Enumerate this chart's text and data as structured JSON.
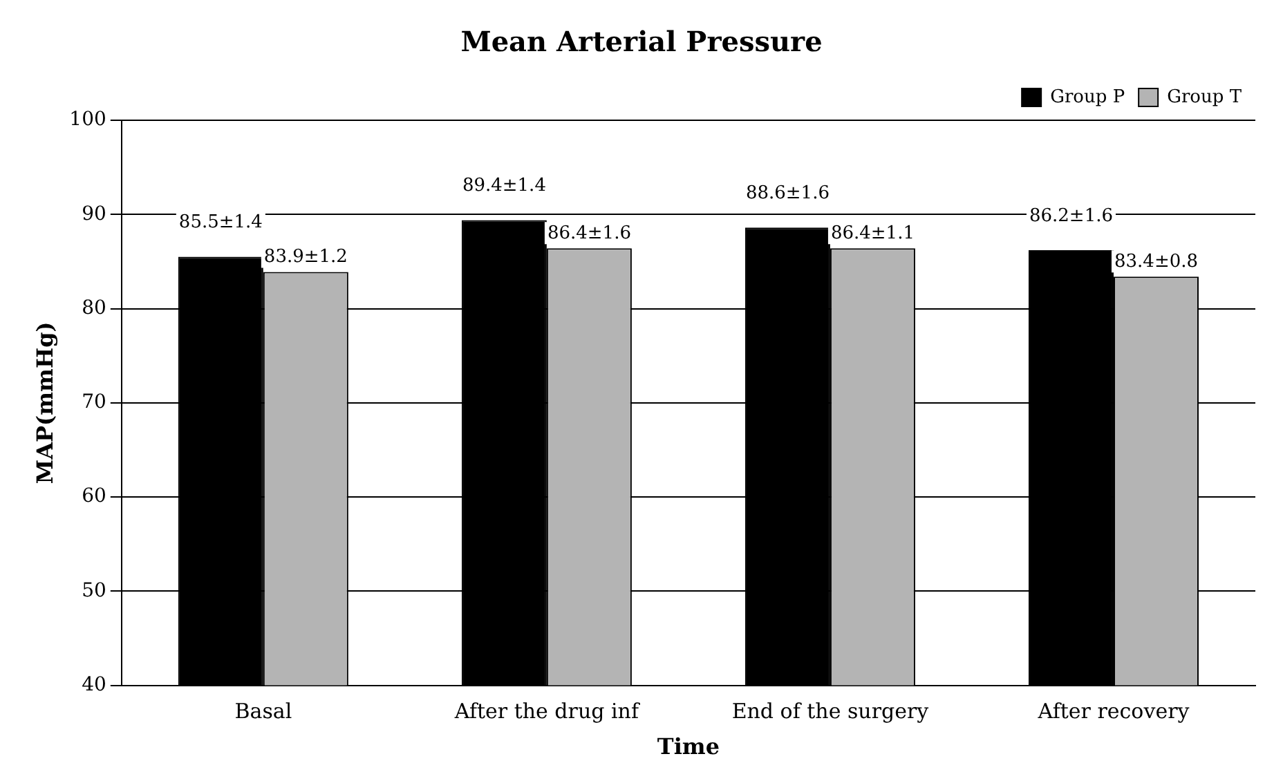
{
  "chart_data": {
    "type": "bar",
    "title": "Mean Arterial Pressure",
    "xlabel": "Time",
    "ylabel": "MAP(mmHg)",
    "categories": [
      "Basal",
      "After the drug inf",
      "End of the surgery",
      "After recovery"
    ],
    "series": [
      {
        "name": "Group P",
        "color": "#000000",
        "values": [
          85.5,
          89.4,
          88.6,
          86.2
        ],
        "value_labels": [
          "85.5±1.4",
          "89.4±1.4",
          "88.6±1.6",
          "86.2±1.6"
        ]
      },
      {
        "name": "Group T",
        "color": "#b4b4b4",
        "values": [
          83.9,
          86.4,
          86.4,
          83.4
        ],
        "value_labels": [
          "83.9±1.2",
          "86.4±1.6",
          "86.4±1.1",
          "83.4±0.8"
        ]
      }
    ],
    "ylim": [
      40,
      100
    ],
    "yticks": [
      40,
      50,
      60,
      70,
      80,
      90,
      100
    ],
    "grid": "y",
    "legend": "top right"
  }
}
